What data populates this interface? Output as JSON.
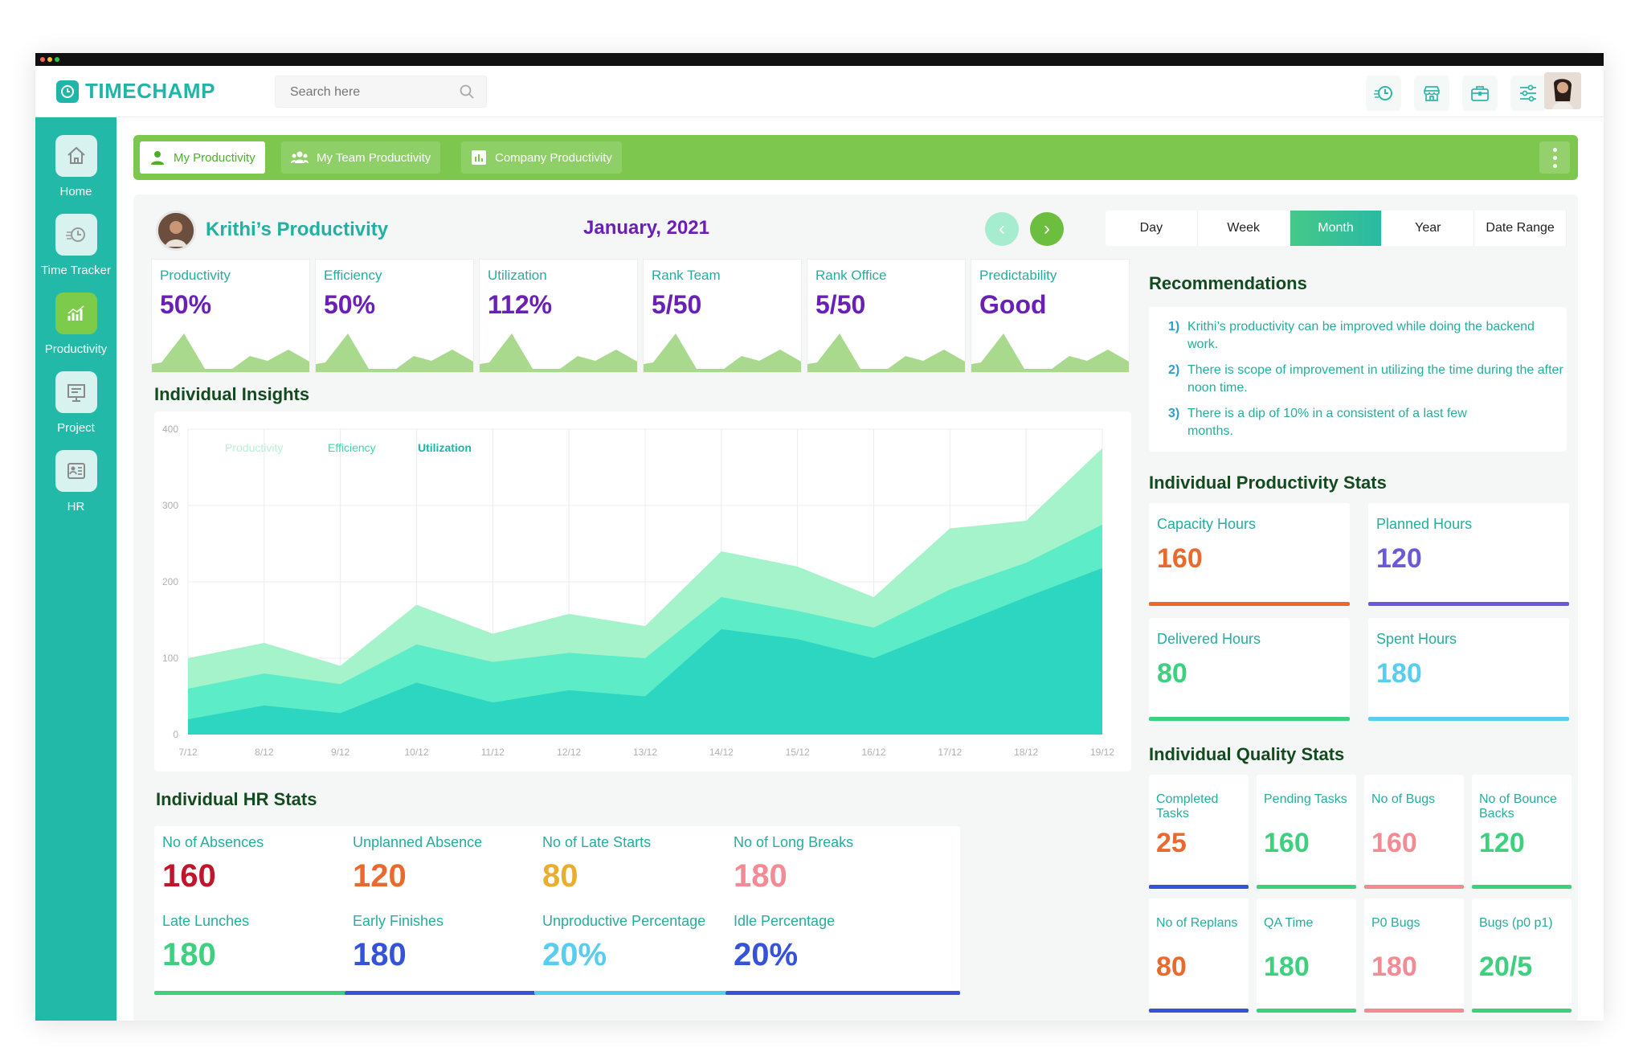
{
  "app": {
    "brand": "TIMECHAMP",
    "search_placeholder": "Search here",
    "top_icons": [
      "time-tracker-icon",
      "store-icon",
      "briefcase-icon",
      "sliders-icon"
    ]
  },
  "sidebar": {
    "items": [
      {
        "label": "Home",
        "icon": "home-icon"
      },
      {
        "label": "Time Tracker",
        "icon": "timer-icon"
      },
      {
        "label": "Productivity",
        "icon": "chart-icon"
      },
      {
        "label": "Project",
        "icon": "project-icon"
      },
      {
        "label": "HR",
        "icon": "hr-icon"
      }
    ]
  },
  "tabs": {
    "my": "My Productivity",
    "team": "My Team Productivity",
    "company": "Company Productivity"
  },
  "header": {
    "title": "Krithi’s Productivity",
    "month": "January, 2021",
    "ranges": [
      "Day",
      "Week",
      "Month",
      "Year",
      "Date Range"
    ],
    "active_range": "Month"
  },
  "kpis": [
    {
      "label": "Productivity",
      "value": "50%"
    },
    {
      "label": "Efficiency",
      "value": "50%"
    },
    {
      "label": "Utilization",
      "value": "112%"
    },
    {
      "label": "Rank Team",
      "value": "5/50"
    },
    {
      "label": "Rank Office",
      "value": "5/50"
    },
    {
      "label": "Predictability",
      "value": "Good"
    }
  ],
  "insights": {
    "title": "Individual Insights",
    "legend": [
      "Productivity",
      "Efficiency",
      "Utilization"
    ]
  },
  "chart_data": {
    "type": "area",
    "x": [
      "7/12",
      "8/12",
      "9/12",
      "10/12",
      "11/12",
      "12/12",
      "13/12",
      "14/12",
      "15/12",
      "16/12",
      "17/12",
      "18/12",
      "19/12"
    ],
    "ylim": [
      0,
      400
    ],
    "yticks": [
      0,
      100,
      200,
      300,
      400
    ],
    "series": [
      {
        "name": "Productivity",
        "color": "#a4f3ca",
        "values": [
          100,
          120,
          90,
          170,
          132,
          158,
          142,
          240,
          220,
          180,
          270,
          280,
          375
        ]
      },
      {
        "name": "Efficiency",
        "color": "#5cecc8",
        "values": [
          60,
          80,
          66,
          118,
          95,
          107,
          100,
          180,
          162,
          140,
          190,
          225,
          275
        ]
      },
      {
        "name": "Utilization",
        "color": "#2cd6c0",
        "values": [
          20,
          38,
          28,
          68,
          42,
          58,
          50,
          138,
          125,
          100,
          140,
          180,
          218
        ]
      }
    ],
    "grid": true
  },
  "hr_stats": {
    "title": "Individual HR Stats",
    "cards": [
      {
        "label": "No of Absences",
        "value": "160",
        "color": "#c0152a"
      },
      {
        "label": "Unplanned Absence",
        "value": "120",
        "color": "#ea6a2e"
      },
      {
        "label": "No of Late Starts",
        "value": "80",
        "color": "#eaae2e"
      },
      {
        "label": "No of Long Breaks",
        "value": "180",
        "color": "#f48a94"
      },
      {
        "label": "Late Lunches",
        "value": "180",
        "color": "#3cd07f"
      },
      {
        "label": "Early Finishes",
        "value": "180",
        "color": "#3553d8"
      },
      {
        "label": "Unproductive Percentage",
        "value": "20%",
        "color": "#58cdf0"
      },
      {
        "label": "Idle Percentage",
        "value": "20%",
        "color": "#3553d8"
      }
    ]
  },
  "recommendations": {
    "title": "Recommendations",
    "items": [
      {
        "num": "1)",
        "text": "Krithi’s productivity can be improved while doing the backend work."
      },
      {
        "num": "2)",
        "text": "There is scope of improvement in utilizing the time during the after noon time."
      },
      {
        "num": "3)",
        "text": "There is a dip of 10% in a consistent of a last few months."
      }
    ]
  },
  "productivity_stats": {
    "title": "Individual Productivity Stats",
    "cards": [
      {
        "label": "Capacity Hours",
        "value": "160",
        "color": "#ea6a2e"
      },
      {
        "label": "Planned Hours",
        "value": "120",
        "color": "#6a5ad8"
      },
      {
        "label": "Delivered Hours",
        "value": "80",
        "color": "#3cd07f"
      },
      {
        "label": "Spent Hours",
        "value": "180",
        "color": "#58cdf0"
      }
    ]
  },
  "quality_stats": {
    "title": "Individual Quality Stats",
    "cards": [
      {
        "label": "Completed Tasks",
        "value": "25",
        "color": "#ea6a2e",
        "line": "#3553d8"
      },
      {
        "label": "Pending Tasks",
        "value": "160",
        "color": "#3cd07f",
        "line": "#3cd07f"
      },
      {
        "label": "No of Bugs",
        "value": "160",
        "color": "#f48a94",
        "line": "#f48a94"
      },
      {
        "label": "No of Bounce Backs",
        "value": "120",
        "color": "#3cd07f",
        "line": "#3cd07f"
      },
      {
        "label": "No of Replans",
        "value": "80",
        "color": "#ea6a2e",
        "line": "#3553d8"
      },
      {
        "label": "QA Time",
        "value": "180",
        "color": "#3cd07f",
        "line": "#3cd07f"
      },
      {
        "label": "P0 Bugs",
        "value": "180",
        "color": "#f48a94",
        "line": "#f48a94"
      },
      {
        "label": "Bugs (p0 p1)",
        "value": "20/5",
        "color": "#3cd07f",
        "line": "#3cd07f"
      }
    ]
  },
  "colors": {
    "primary": "#22b9a8",
    "accent_green": "#7dc74e",
    "purple": "#6a1fb7"
  }
}
